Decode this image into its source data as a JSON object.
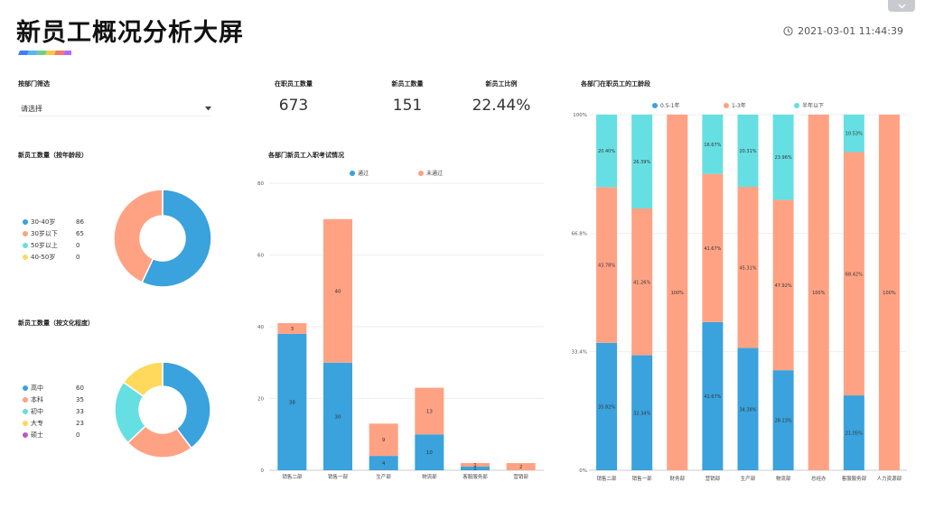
{
  "header": {
    "title": "新员工概况分析大屏",
    "datetime": "2021-03-01 11:44:39"
  },
  "filter": {
    "label": "按部门筛选",
    "placeholder": "请选择"
  },
  "kpis": [
    {
      "label": "在职员工数量",
      "value": "673"
    },
    {
      "label": "新员工数量",
      "value": "151"
    },
    {
      "label": "新员工比例",
      "value": "22.44%"
    }
  ],
  "colors": {
    "blue": "#3aa2dc",
    "orange": "#ffa284",
    "cyan": "#66dfe3",
    "yellow": "#ffd95c",
    "purple": "#c157c0",
    "stripe": [
      "#3d7ff6",
      "#5ab2f7",
      "#6dd08a",
      "#f6c845",
      "#f37a6b",
      "#b06cf0"
    ]
  },
  "chart_data": [
    {
      "id": "donut-age",
      "type": "pie",
      "title": "新员工数量（按年龄段）",
      "legend": "left",
      "slices": [
        {
          "name": "30-40岁",
          "value": 86,
          "color": "#3aa2dc"
        },
        {
          "name": "30岁以下",
          "value": 65,
          "color": "#ffa284"
        },
        {
          "name": "50岁以上",
          "value": 0,
          "color": "#66dfe3"
        },
        {
          "name": "40-50岁",
          "value": 0,
          "color": "#ffd95c"
        }
      ]
    },
    {
      "id": "donut-edu",
      "type": "pie",
      "title": "新员工数量（按文化程度）",
      "legend": "left",
      "slices": [
        {
          "name": "高中",
          "value": 60,
          "color": "#3aa2dc"
        },
        {
          "name": "本科",
          "value": 35,
          "color": "#ffa284"
        },
        {
          "name": "初中",
          "value": 33,
          "color": "#66dfe3"
        },
        {
          "name": "大专",
          "value": 23,
          "color": "#ffd95c"
        },
        {
          "name": "硕士",
          "value": 0,
          "color": "#c157c0"
        }
      ]
    },
    {
      "id": "bar-exam",
      "type": "bar",
      "stacked": true,
      "title": "各部门新员工入职考试情况",
      "legend": "top-center",
      "categories": [
        "销售二部",
        "销售一部",
        "生产部",
        "物流部",
        "客服服务部",
        "营销部"
      ],
      "series": [
        {
          "name": "通过",
          "values": [
            38,
            30,
            4,
            10,
            1,
            0
          ],
          "color": "#3aa2dc"
        },
        {
          "name": "未通过",
          "values": [
            3,
            40,
            9,
            13,
            1,
            2
          ],
          "color": "#ffa284"
        }
      ],
      "ylim": [
        0,
        80
      ],
      "yticks": [
        "0",
        "20",
        "40",
        "60",
        "80"
      ],
      "grid": true
    },
    {
      "id": "bar-tenure",
      "type": "bar",
      "stacked": true,
      "percent": true,
      "title": "各部门在职员工的工龄段",
      "legend": "top-center",
      "categories": [
        "销售二部",
        "销售一部",
        "财务部",
        "营销部",
        "生产部",
        "物流部",
        "总经办",
        "客服服务部",
        "人力资源部"
      ],
      "series": [
        {
          "name": "0.5-1年",
          "values": [
            35.82,
            32.34,
            0,
            41.67,
            34.38,
            28.13,
            0,
            21.05,
            0
          ],
          "labels": [
            "35.82%",
            "32.34%",
            "",
            "41.67%",
            "34.38%",
            "28.13%",
            "",
            "21.05%",
            ""
          ],
          "color": "#3aa2dc"
        },
        {
          "name": "1-3年",
          "values": [
            43.78,
            41.26,
            100,
            41.67,
            45.31,
            47.92,
            100,
            68.42,
            100
          ],
          "labels": [
            "43.78%",
            "41.26%",
            "100%",
            "41.67%",
            "45.31%",
            "47.92%",
            "100%",
            "68.42%",
            "100%"
          ],
          "color": "#ffa284"
        },
        {
          "name": "半年以下",
          "values": [
            20.4,
            26.39,
            0,
            16.67,
            20.31,
            23.96,
            0,
            10.53,
            0
          ],
          "labels": [
            "20.40%",
            "26.39%",
            "",
            "16.67%",
            "20.31%",
            "23.96%",
            "",
            "10.53%",
            ""
          ],
          "color": "#66dfe3"
        }
      ],
      "ylim": [
        0,
        100
      ],
      "yticks": [
        "0%",
        "33.4%",
        "66.8%",
        "100%"
      ],
      "grid": true
    }
  ]
}
